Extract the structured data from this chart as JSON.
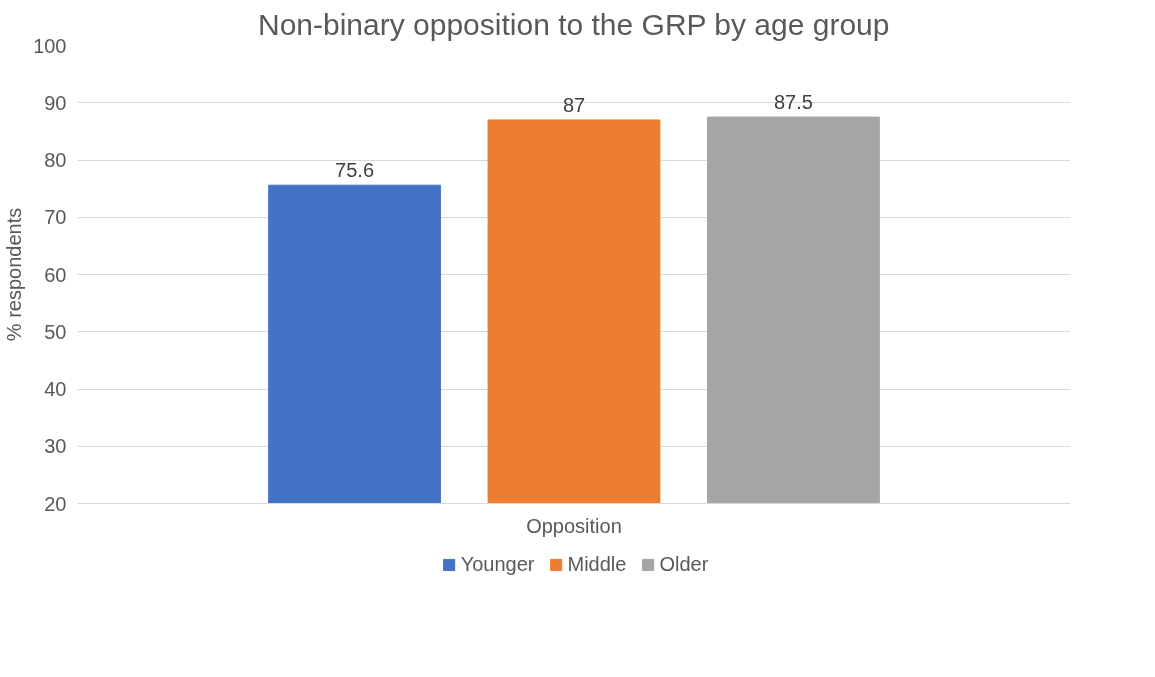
{
  "chart_data": {
    "type": "bar",
    "title": "Non-binary opposition to the GRP by age group",
    "categories": [
      "Opposition"
    ],
    "ylabel": "% respondents",
    "series": [
      {
        "name": "Younger",
        "color": "#4472c4",
        "values": [
          75.6
        ]
      },
      {
        "name": "Middle",
        "color": "#ed7d31",
        "values": [
          87
        ]
      },
      {
        "name": "Older",
        "color": "#a5a5a5",
        "values": [
          87.5
        ]
      }
    ],
    "ylim": [
      20,
      100
    ],
    "yticks": [
      20,
      30,
      40,
      50,
      60,
      70,
      80,
      90,
      100
    ],
    "grid": "y",
    "legend": "bottom",
    "data_labels": true
  }
}
